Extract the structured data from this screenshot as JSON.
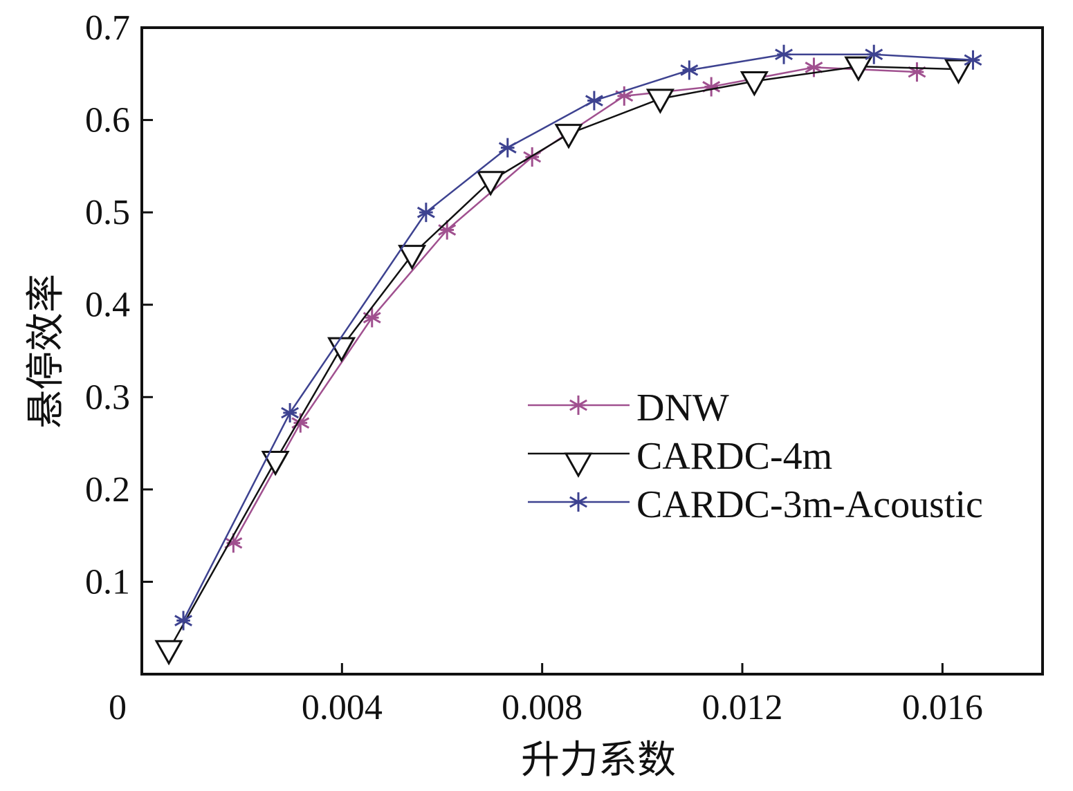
{
  "chart_data": {
    "type": "line",
    "title": "",
    "xlabel": "升力系数",
    "ylabel": "悬停效率",
    "xlim": [
      0,
      0.018
    ],
    "ylim": [
      0,
      0.7
    ],
    "x_origin_label": "0",
    "xticks": [
      0.004,
      0.008,
      0.012,
      0.016
    ],
    "xtick_labels": [
      "0.004",
      "0.008",
      "0.012",
      "0.016"
    ],
    "yticks": [
      0.1,
      0.2,
      0.3,
      0.4,
      0.5,
      0.6,
      0.7
    ],
    "ytick_labels": [
      "0.1",
      "0.2",
      "0.3",
      "0.4",
      "0.5",
      "0.6",
      "0.7"
    ],
    "grid": false,
    "legend_position": "center-right",
    "series": [
      {
        "name": "DNW",
        "color": "#a0508f",
        "marker": "asterisk",
        "x": [
          0.00183,
          0.00317,
          0.0046,
          0.0061,
          0.0078,
          0.00964,
          0.01138,
          0.01343,
          0.01549
        ],
        "y": [
          0.142,
          0.272,
          0.386,
          0.481,
          0.56,
          0.626,
          0.636,
          0.657,
          0.652
        ]
      },
      {
        "name": "CARDC-4m",
        "color": "#111111",
        "marker": "triangle-down",
        "x": [
          0.00054,
          0.00267,
          0.00399,
          0.0054,
          0.00697,
          0.00853,
          0.01036,
          0.01224,
          0.01432,
          0.01632
        ],
        "y": [
          0.026,
          0.231,
          0.354,
          0.454,
          0.534,
          0.585,
          0.623,
          0.642,
          0.658,
          0.655
        ]
      },
      {
        "name": "CARDC-3m-Acoustic",
        "color": "#3d4290",
        "marker": "asterisk",
        "x": [
          0.00083,
          0.00296,
          0.00568,
          0.00731,
          0.00904,
          0.01094,
          0.01283,
          0.01463,
          0.01661
        ],
        "y": [
          0.058,
          0.283,
          0.5,
          0.57,
          0.621,
          0.654,
          0.671,
          0.671,
          0.665
        ]
      }
    ]
  }
}
